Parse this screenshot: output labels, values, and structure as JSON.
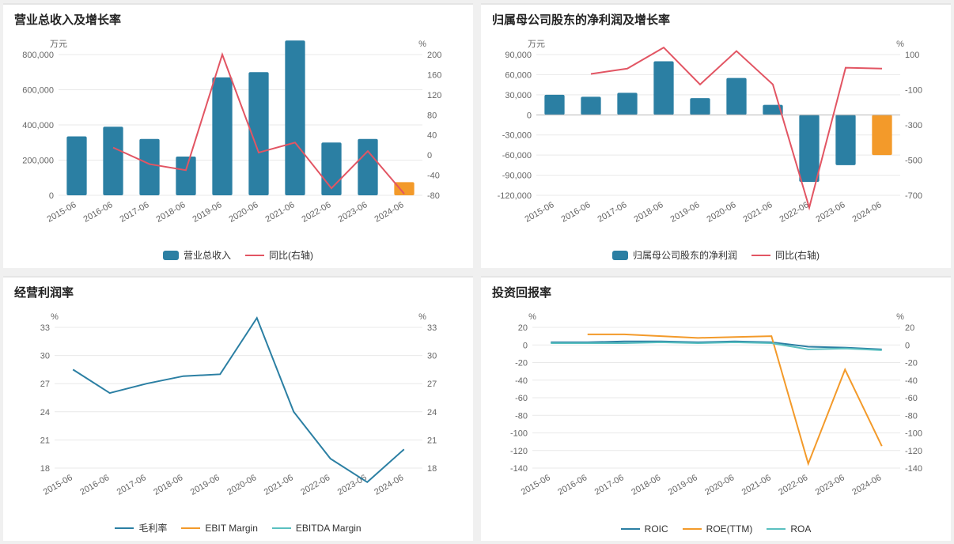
{
  "colors": {
    "bar_primary": "#2b7fa3",
    "bar_highlight": "#f39a2a",
    "line_red": "#e25563",
    "line_blue": "#2b7fa3",
    "line_orange": "#f39a2a",
    "line_teal": "#5ac0c0",
    "grid": "#e9e9e9",
    "text": "#666666",
    "title": "#222222"
  },
  "categories": [
    "2015-06",
    "2016-06",
    "2017-06",
    "2018-06",
    "2019-06",
    "2020-06",
    "2021-06",
    "2022-06",
    "2023-06",
    "2024-06"
  ],
  "chart1": {
    "title": "营业总收入及增长率",
    "y1_unit": "万元",
    "y2_unit": "%",
    "y1_min": 0,
    "y1_max": 800000,
    "y1_step": 200000,
    "y2_min": -80,
    "y2_max": 200,
    "y2_step": 40,
    "bars": {
      "label": "营业总收入",
      "values": [
        335000,
        390000,
        320000,
        220000,
        670000,
        700000,
        880000,
        300000,
        320000,
        75000
      ],
      "colors": [
        "#2b7fa3",
        "#2b7fa3",
        "#2b7fa3",
        "#2b7fa3",
        "#2b7fa3",
        "#2b7fa3",
        "#2b7fa3",
        "#2b7fa3",
        "#2b7fa3",
        "#f39a2a"
      ]
    },
    "line": {
      "label": "同比(右轴)",
      "color": "#e25563",
      "values": [
        null,
        15,
        -18,
        -30,
        200,
        5,
        25,
        -66,
        8,
        -77
      ]
    }
  },
  "chart2": {
    "title": "归属母公司股东的净利润及增长率",
    "y1_unit": "万元",
    "y2_unit": "%",
    "y1_min": -120000,
    "y1_max": 90000,
    "y1_step": 30000,
    "y2_min": -700,
    "y2_max": 100,
    "y2_step": 200,
    "bars": {
      "label": "归属母公司股东的净利润",
      "values": [
        30000,
        27000,
        33000,
        80000,
        25000,
        55000,
        15000,
        -100000,
        -75000,
        -60000
      ],
      "colors": [
        "#2b7fa3",
        "#2b7fa3",
        "#2b7fa3",
        "#2b7fa3",
        "#2b7fa3",
        "#2b7fa3",
        "#2b7fa3",
        "#2b7fa3",
        "#2b7fa3",
        "#f39a2a"
      ]
    },
    "line": {
      "label": "同比(右轴)",
      "color": "#e25563",
      "values": [
        null,
        -10,
        20,
        140,
        -70,
        120,
        -70,
        -770,
        25,
        20
      ]
    }
  },
  "chart3": {
    "title": "经营利润率",
    "y_unit": "%",
    "y_min": 18,
    "y_max": 33,
    "y_step": 3,
    "series": [
      {
        "label": "毛利率",
        "color": "#2b7fa3",
        "values": [
          28.5,
          26,
          27,
          27.8,
          28,
          34,
          24,
          19,
          16.5,
          20
        ]
      },
      {
        "label": "EBIT Margin",
        "color": "#f39a2a",
        "values": []
      },
      {
        "label": "EBITDA Margin",
        "color": "#5ac0c0",
        "values": []
      }
    ]
  },
  "chart4": {
    "title": "投资回报率",
    "y_unit": "%",
    "y_min": -140,
    "y_max": 20,
    "y_step": 20,
    "series": [
      {
        "label": "ROIC",
        "color": "#2b7fa3",
        "values": [
          3,
          3,
          4,
          4,
          3,
          4,
          3,
          -2,
          -3,
          -5
        ]
      },
      {
        "label": "ROE(TTM)",
        "color": "#f39a2a",
        "values": [
          null,
          12,
          12,
          10,
          8,
          9,
          10,
          -135,
          -28,
          -115
        ]
      },
      {
        "label": "ROA",
        "color": "#5ac0c0",
        "values": [
          2,
          2,
          2,
          3,
          2,
          3,
          2,
          -5,
          -4,
          -6
        ]
      }
    ]
  }
}
